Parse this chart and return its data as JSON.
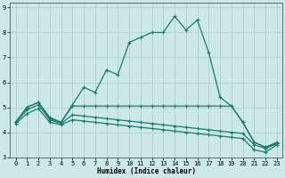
{
  "title": "",
  "xlabel": "Humidex (Indice chaleur)",
  "ylabel": "",
  "bg_color": "#cce8e8",
  "grid_color": "#aacccc",
  "line_color": "#1a7a6e",
  "x_min": -0.5,
  "x_max": 23.5,
  "y_min": 3.0,
  "y_max": 9.2,
  "yticks": [
    3,
    4,
    5,
    6,
    7,
    8,
    9
  ],
  "xticks": [
    0,
    1,
    2,
    3,
    4,
    5,
    6,
    7,
    8,
    9,
    10,
    11,
    12,
    13,
    14,
    15,
    16,
    17,
    18,
    19,
    20,
    21,
    22,
    23
  ],
  "line1_x": [
    0,
    1,
    2,
    3,
    4,
    5,
    6,
    7,
    8,
    9,
    10,
    11,
    12,
    13,
    14,
    15,
    16,
    17,
    18,
    19,
    20,
    21,
    22,
    23
  ],
  "line1_y": [
    4.4,
    5.0,
    5.2,
    4.6,
    4.4,
    5.1,
    5.8,
    5.6,
    6.5,
    6.3,
    7.6,
    7.8,
    8.0,
    8.0,
    8.65,
    8.1,
    8.5,
    7.2,
    5.4,
    5.05,
    4.4,
    3.6,
    3.4,
    3.6
  ],
  "line2_x": [
    0,
    1,
    2,
    3,
    4,
    5,
    6,
    7,
    8,
    9,
    10,
    11,
    12,
    13,
    14,
    15,
    16,
    17,
    18,
    19,
    20,
    21,
    22,
    23
  ],
  "line2_y": [
    4.4,
    5.0,
    5.2,
    4.55,
    4.4,
    5.05,
    5.05,
    5.05,
    5.05,
    5.05,
    5.05,
    5.05,
    5.05,
    5.05,
    5.05,
    5.05,
    5.05,
    5.05,
    5.05,
    5.05,
    4.4,
    3.6,
    3.4,
    3.55
  ],
  "line3_x": [
    0,
    1,
    2,
    3,
    4,
    5,
    6,
    7,
    8,
    9,
    10,
    11,
    12,
    13,
    14,
    15,
    16,
    17,
    18,
    19,
    20,
    21,
    22,
    23
  ],
  "line3_y": [
    4.4,
    4.9,
    5.1,
    4.5,
    4.35,
    4.7,
    4.65,
    4.6,
    4.55,
    4.5,
    4.45,
    4.4,
    4.35,
    4.3,
    4.25,
    4.2,
    4.15,
    4.1,
    4.05,
    4.0,
    3.95,
    3.5,
    3.35,
    3.55
  ],
  "line4_x": [
    0,
    1,
    2,
    3,
    4,
    5,
    6,
    7,
    8,
    9,
    10,
    11,
    12,
    13,
    14,
    15,
    16,
    17,
    18,
    19,
    20,
    21,
    22,
    23
  ],
  "line4_y": [
    4.35,
    4.75,
    4.95,
    4.4,
    4.3,
    4.5,
    4.45,
    4.4,
    4.35,
    4.3,
    4.25,
    4.2,
    4.15,
    4.1,
    4.05,
    4.0,
    3.95,
    3.9,
    3.85,
    3.8,
    3.75,
    3.3,
    3.2,
    3.5
  ]
}
